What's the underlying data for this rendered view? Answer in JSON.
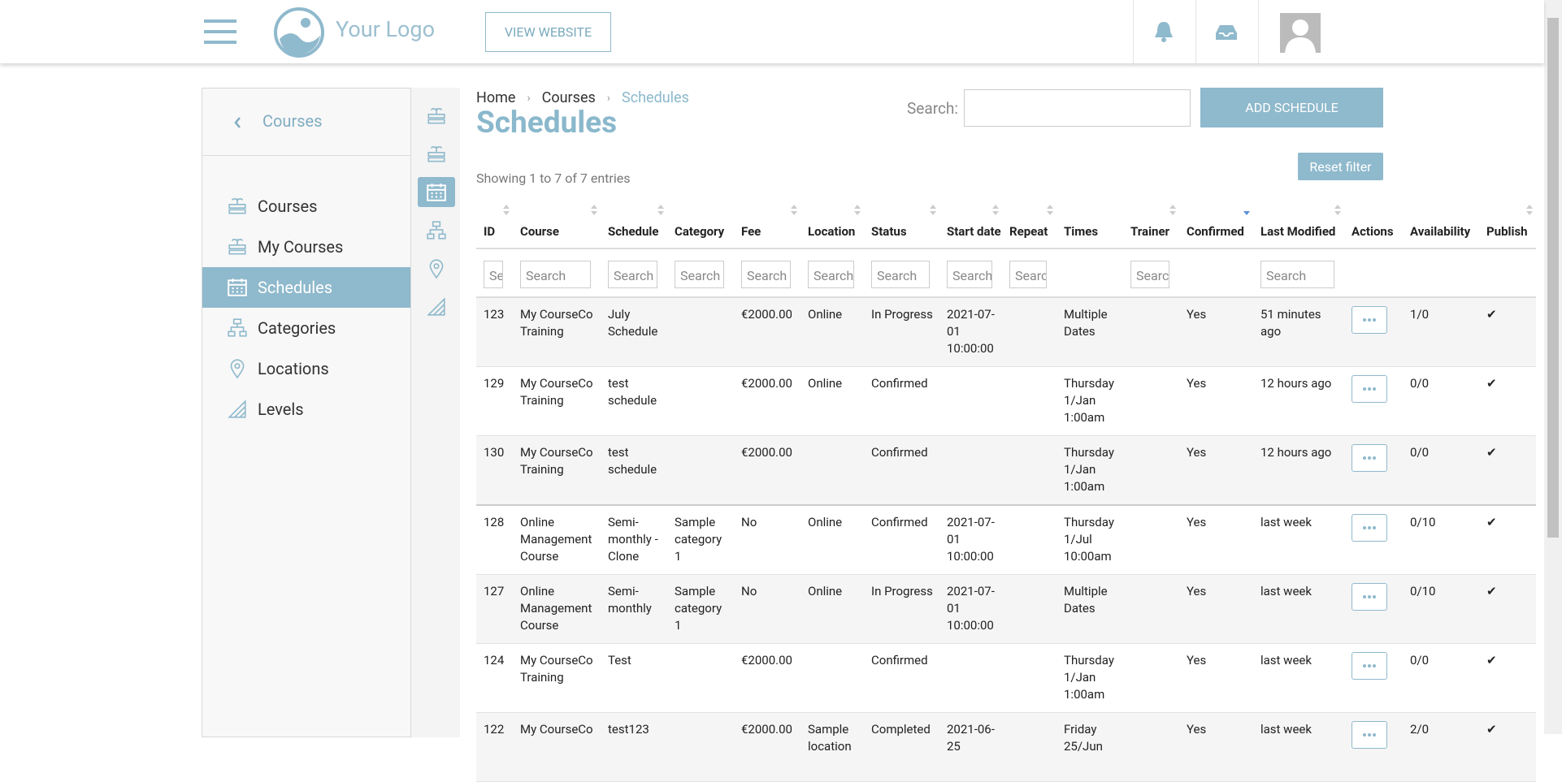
{
  "header": {
    "logo_text": "Your Logo",
    "view_website": "VIEW WEBSITE"
  },
  "sidebar": {
    "back_label": "Courses",
    "items": [
      "Courses",
      "My Courses",
      "Schedules",
      "Categories",
      "Locations",
      "Levels"
    ],
    "active": 2
  },
  "breadcrumb": [
    "Home",
    "Courses",
    "Schedules"
  ],
  "page_title": "Schedules",
  "search_label": "Search:",
  "add_button": "ADD SCHEDULE",
  "reset_button": "Reset filter",
  "entries_info": "Showing 1 to 7 of 7 entries",
  "table": {
    "filter_placeholder": "Search",
    "columns": [
      {
        "label": "ID",
        "sortable": true,
        "filter": true
      },
      {
        "label": "Course",
        "sortable": true,
        "filter": true
      },
      {
        "label": "Schedule",
        "sortable": true,
        "filter": true
      },
      {
        "label": "Category",
        "sortable": false,
        "filter": true
      },
      {
        "label": "Fee",
        "sortable": true,
        "filter": true
      },
      {
        "label": "Location",
        "sortable": true,
        "filter": true
      },
      {
        "label": "Status",
        "sortable": true,
        "filter": true
      },
      {
        "label": "Start date",
        "sortable": true,
        "filter": true
      },
      {
        "label": "Repeat",
        "sortable": true,
        "filter": true
      },
      {
        "label": "Times",
        "sortable": false,
        "filter": false
      },
      {
        "label": "Trainer",
        "sortable": true,
        "filter": true
      },
      {
        "label": "Confirmed",
        "sortable": true,
        "filter": false,
        "sorted": true
      },
      {
        "label": "Last Modified",
        "sortable": true,
        "filter": true
      },
      {
        "label": "Actions",
        "sortable": false,
        "filter": false
      },
      {
        "label": "Availability",
        "sortable": false,
        "filter": false
      },
      {
        "label": "Publish",
        "sortable": true,
        "filter": false
      }
    ],
    "rows": [
      [
        "123",
        "My CourseCo Training",
        "July Schedule",
        "",
        "€2000.00",
        "Online",
        "In Progress",
        "2021-07-01 10:00:00",
        "",
        "Multiple Dates",
        "",
        "Yes",
        "51 minutes ago",
        "",
        "1/0",
        "✔"
      ],
      [
        "129",
        "My CourseCo Training",
        "test schedule",
        "",
        "€2000.00",
        "Online",
        "Confirmed",
        "",
        "",
        "Thursday 1/Jan 1:00am",
        "",
        "Yes",
        "12 hours ago",
        "",
        "0/0",
        "✔"
      ],
      [
        "130",
        "My CourseCo Training",
        "test schedule",
        "",
        "€2000.00",
        "",
        "Confirmed",
        "",
        "",
        "Thursday 1/Jan 1:00am",
        "",
        "Yes",
        "12 hours ago",
        "",
        "0/0",
        "✔"
      ],
      [
        "128",
        "Online Management Course",
        "Semi-monthly - Clone",
        "Sample category 1",
        "No",
        "Online",
        "Confirmed",
        "2021-07-01 10:00:00",
        "",
        "Thursday 1/Jul 10:00am",
        "",
        "Yes",
        "last week",
        "",
        "0/10",
        "✔"
      ],
      [
        "127",
        "Online Management Course",
        "Semi-monthly",
        "Sample category 1",
        "No",
        "Online",
        "In Progress",
        "2021-07-01 10:00:00",
        "",
        "Multiple Dates",
        "",
        "Yes",
        "last week",
        "",
        "0/10",
        "✔"
      ],
      [
        "124",
        "My CourseCo Training",
        "Test",
        "",
        "€2000.00",
        "",
        "Confirmed",
        "",
        "",
        "Thursday 1/Jan 1:00am",
        "",
        "Yes",
        "last week",
        "",
        "0/0",
        "✔"
      ],
      [
        "122",
        "My CourseCo",
        "test123",
        "",
        "€2000.00",
        "Sample location",
        "Completed",
        "2021-06-25",
        "",
        "Friday 25/Jun",
        "",
        "Yes",
        "last week",
        "",
        "2/0",
        "✔"
      ]
    ]
  }
}
